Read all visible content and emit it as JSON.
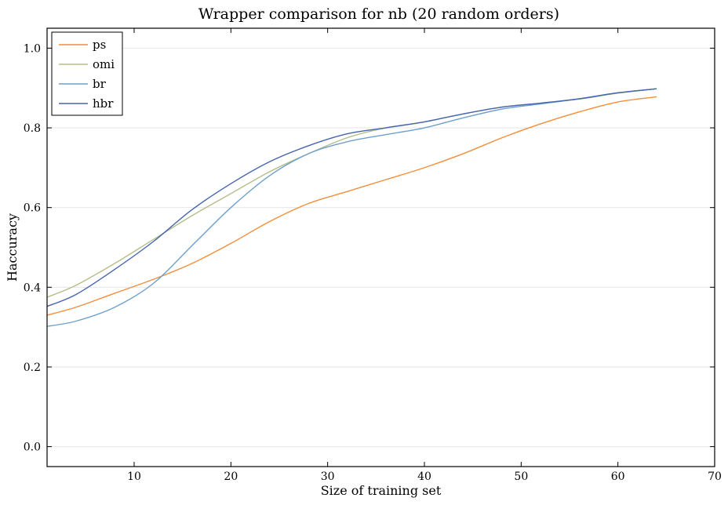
{
  "chart_data": {
    "type": "line",
    "title": "Wrapper comparison for nb (20 random orders)",
    "xlabel": "Size of training set",
    "ylabel": "Haccuracy",
    "xlim": [
      1,
      70
    ],
    "ylim": [
      -0.05,
      1.05
    ],
    "xticks": [
      10,
      20,
      30,
      40,
      50,
      60,
      70
    ],
    "yticks": [
      0.0,
      0.2,
      0.4,
      0.6,
      0.8,
      1.0
    ],
    "xtick_labels": [
      "10",
      "20",
      "30",
      "40",
      "50",
      "60",
      "70"
    ],
    "ytick_labels": [
      "0.0",
      "0.2",
      "0.4",
      "0.6",
      "0.8",
      "1.0"
    ],
    "grid": "horizontal",
    "legend_position": "top-left",
    "x": [
      1,
      4,
      8,
      12,
      16,
      20,
      24,
      28,
      32,
      36,
      40,
      44,
      48,
      52,
      56,
      60,
      64
    ],
    "series": [
      {
        "name": "ps",
        "color": "#f28e3c",
        "values": [
          0.33,
          0.35,
          0.385,
          0.42,
          0.46,
          0.51,
          0.565,
          0.61,
          0.64,
          0.67,
          0.7,
          0.735,
          0.775,
          0.81,
          0.84,
          0.865,
          0.878
        ]
      },
      {
        "name": "omi",
        "color": "#b5bd8a",
        "values": [
          0.375,
          0.405,
          0.46,
          0.52,
          0.58,
          0.635,
          0.69,
          0.735,
          0.775,
          0.8,
          0.815,
          0.835,
          0.852,
          0.862,
          0.872,
          0.887,
          0.898
        ]
      },
      {
        "name": "br",
        "color": "#6ea0cc",
        "values": [
          0.302,
          0.315,
          0.35,
          0.41,
          0.505,
          0.6,
          0.68,
          0.735,
          0.765,
          0.783,
          0.8,
          0.825,
          0.847,
          0.86,
          0.873,
          0.888,
          0.898
        ]
      },
      {
        "name": "hbr",
        "color": "#4565b0",
        "values": [
          0.352,
          0.382,
          0.445,
          0.515,
          0.595,
          0.66,
          0.715,
          0.755,
          0.785,
          0.8,
          0.815,
          0.835,
          0.852,
          0.862,
          0.873,
          0.888,
          0.898
        ]
      }
    ]
  }
}
